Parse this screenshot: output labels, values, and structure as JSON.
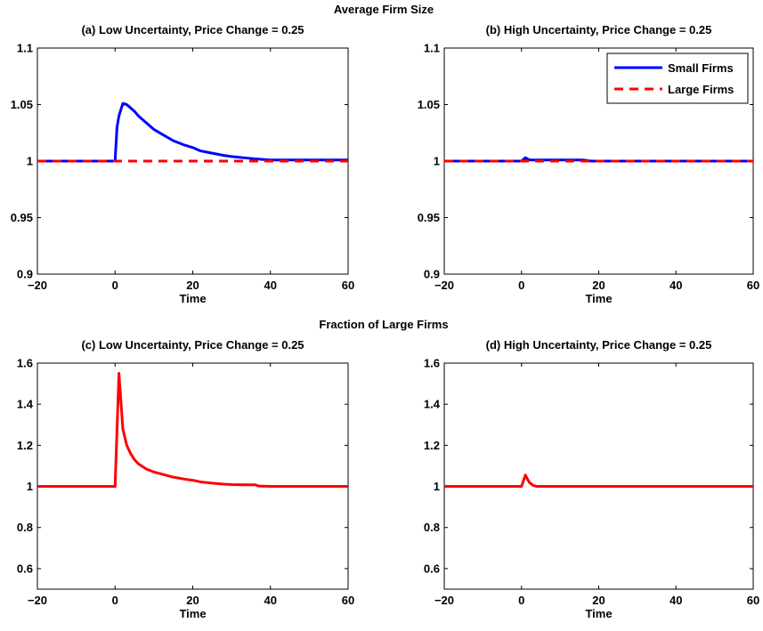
{
  "figure": {
    "sections": [
      {
        "title": "Average Firm Size"
      },
      {
        "title": "Fraction of Large Firms"
      }
    ]
  },
  "chart_data": [
    {
      "type": "line",
      "title": "(a) Low Uncertainty, Price Change = 0.25",
      "xlabel": "Time",
      "ylabel": "",
      "xlim": [
        -20,
        60
      ],
      "ylim": [
        0.9,
        1.1
      ],
      "xticks": [
        -20,
        0,
        20,
        40,
        60
      ],
      "yticks": [
        0.9,
        0.95,
        1,
        1.05,
        1.1
      ],
      "ytick_labels": [
        "0.9",
        "0.95",
        "1",
        "1.05",
        "1.1"
      ],
      "legend": null,
      "series": [
        {
          "color": "#0000ff",
          "style": "solid",
          "x": [
            -20,
            0,
            0.5,
            1,
            2,
            3,
            4,
            5,
            6,
            8,
            10,
            12,
            15,
            18,
            20,
            22,
            25,
            28,
            30,
            33,
            36,
            40,
            42,
            45,
            50,
            55,
            60
          ],
          "y": [
            1,
            1,
            1.03,
            1.04,
            1.051,
            1.05,
            1.047,
            1.044,
            1.04,
            1.034,
            1.028,
            1.024,
            1.018,
            1.014,
            1.012,
            1.009,
            1.007,
            1.005,
            1.004,
            1.003,
            1.002,
            1.001,
            1.001,
            1.001,
            1.001,
            1.001,
            1.001
          ]
        },
        {
          "color": "#ff0000",
          "style": "dashed",
          "x": [
            -20,
            60
          ],
          "y": [
            1,
            1
          ]
        }
      ]
    },
    {
      "type": "line",
      "title": "(b) High Uncertainty,  Price Change = 0.25",
      "xlabel": "Time",
      "ylabel": "",
      "xlim": [
        -20,
        60
      ],
      "ylim": [
        0.9,
        1.1
      ],
      "xticks": [
        -20,
        0,
        20,
        40,
        60
      ],
      "yticks": [
        0.9,
        0.95,
        1,
        1.05,
        1.1
      ],
      "ytick_labels": [
        "0.9",
        "0.95",
        "1",
        "1.05",
        "1.1"
      ],
      "legend": "top-right",
      "series": [
        {
          "name": "Small Firms",
          "color": "#0000ff",
          "style": "solid",
          "x": [
            -20,
            0,
            1,
            2,
            4,
            10,
            16,
            17,
            18,
            60
          ],
          "y": [
            1,
            1,
            1.003,
            1.001,
            1.001,
            1.001,
            1.001,
            1.0005,
            1,
            1
          ]
        },
        {
          "name": "Large Firms",
          "color": "#ff0000",
          "style": "dashed",
          "x": [
            -20,
            60
          ],
          "y": [
            1,
            1
          ]
        }
      ]
    },
    {
      "type": "line",
      "title": "(c) Low Uncertainty, Price Change = 0.25",
      "xlabel": "Time",
      "ylabel": "",
      "xlim": [
        -20,
        60
      ],
      "ylim": [
        0.5,
        1.6
      ],
      "xticks": [
        -20,
        0,
        20,
        40,
        60
      ],
      "yticks": [
        0.6,
        0.8,
        1,
        1.2,
        1.4,
        1.6
      ],
      "ytick_labels": [
        "0.6",
        "0.8",
        "1",
        "1.2",
        "1.4",
        "1.6"
      ],
      "legend": null,
      "series": [
        {
          "color": "#ff0000",
          "style": "solid",
          "x": [
            -20,
            0,
            1,
            2,
            3,
            4,
            5,
            6,
            8,
            10,
            12,
            15,
            18,
            20,
            22,
            25,
            28,
            30,
            33,
            36,
            37,
            40,
            45,
            50,
            55,
            60
          ],
          "y": [
            1,
            1,
            1.55,
            1.28,
            1.2,
            1.16,
            1.13,
            1.11,
            1.085,
            1.07,
            1.06,
            1.045,
            1.035,
            1.03,
            1.022,
            1.016,
            1.011,
            1.009,
            1.008,
            1.008,
            1.002,
            1,
            1,
            1,
            1,
            1
          ]
        }
      ]
    },
    {
      "type": "line",
      "title": "(d) High Uncertainty,  Price Change = 0.25",
      "xlabel": "Time",
      "ylabel": "",
      "xlim": [
        -20,
        60
      ],
      "ylim": [
        0.5,
        1.6
      ],
      "xticks": [
        -20,
        0,
        20,
        40,
        60
      ],
      "yticks": [
        0.6,
        0.8,
        1,
        1.2,
        1.4,
        1.6
      ],
      "ytick_labels": [
        "0.6",
        "0.8",
        "1",
        "1.2",
        "1.4",
        "1.6"
      ],
      "legend": null,
      "series": [
        {
          "color": "#ff0000",
          "style": "solid",
          "x": [
            -20,
            0,
            1,
            2,
            3,
            4,
            60
          ],
          "y": [
            1,
            1,
            1.055,
            1.02,
            1.005,
            1,
            1
          ]
        }
      ]
    }
  ]
}
